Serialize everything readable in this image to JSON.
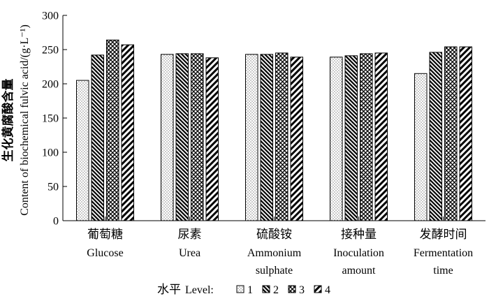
{
  "chart_data": {
    "type": "bar",
    "ylabel_cn": "生化黄腐酸含量",
    "ylabel_en": "Content of biochemical fulvic acid/(g·L⁻¹)",
    "ylim": [
      0,
      300
    ],
    "yticks": [
      0,
      50,
      100,
      150,
      200,
      250,
      300
    ],
    "grid": false,
    "categories": [
      {
        "cn": "葡萄糖",
        "en1": "Glucose",
        "en2": ""
      },
      {
        "cn": "尿素",
        "en1": "Urea",
        "en2": ""
      },
      {
        "cn": "硫酸铵",
        "en1": "Ammonium",
        "en2": "sulphate"
      },
      {
        "cn": "接种量",
        "en1": "Inoculation",
        "en2": "amount"
      },
      {
        "cn": "发酵时间",
        "en1": "Fermentation",
        "en2": "time"
      }
    ],
    "series": [
      {
        "name": "1",
        "pattern": "dots",
        "values": [
          205,
          243,
          243,
          239,
          215
        ]
      },
      {
        "name": "2",
        "pattern": "hatch-dense",
        "values": [
          242,
          244,
          243,
          241,
          246
        ]
      },
      {
        "name": "3",
        "pattern": "crosshatch",
        "values": [
          264,
          244,
          245,
          244,
          254
        ]
      },
      {
        "name": "4",
        "pattern": "hatch-wide",
        "values": [
          257,
          238,
          239,
          245,
          254
        ]
      }
    ],
    "legend": {
      "placement": "bottom-center",
      "title_cn": "水平",
      "title_en": "Level:"
    }
  }
}
